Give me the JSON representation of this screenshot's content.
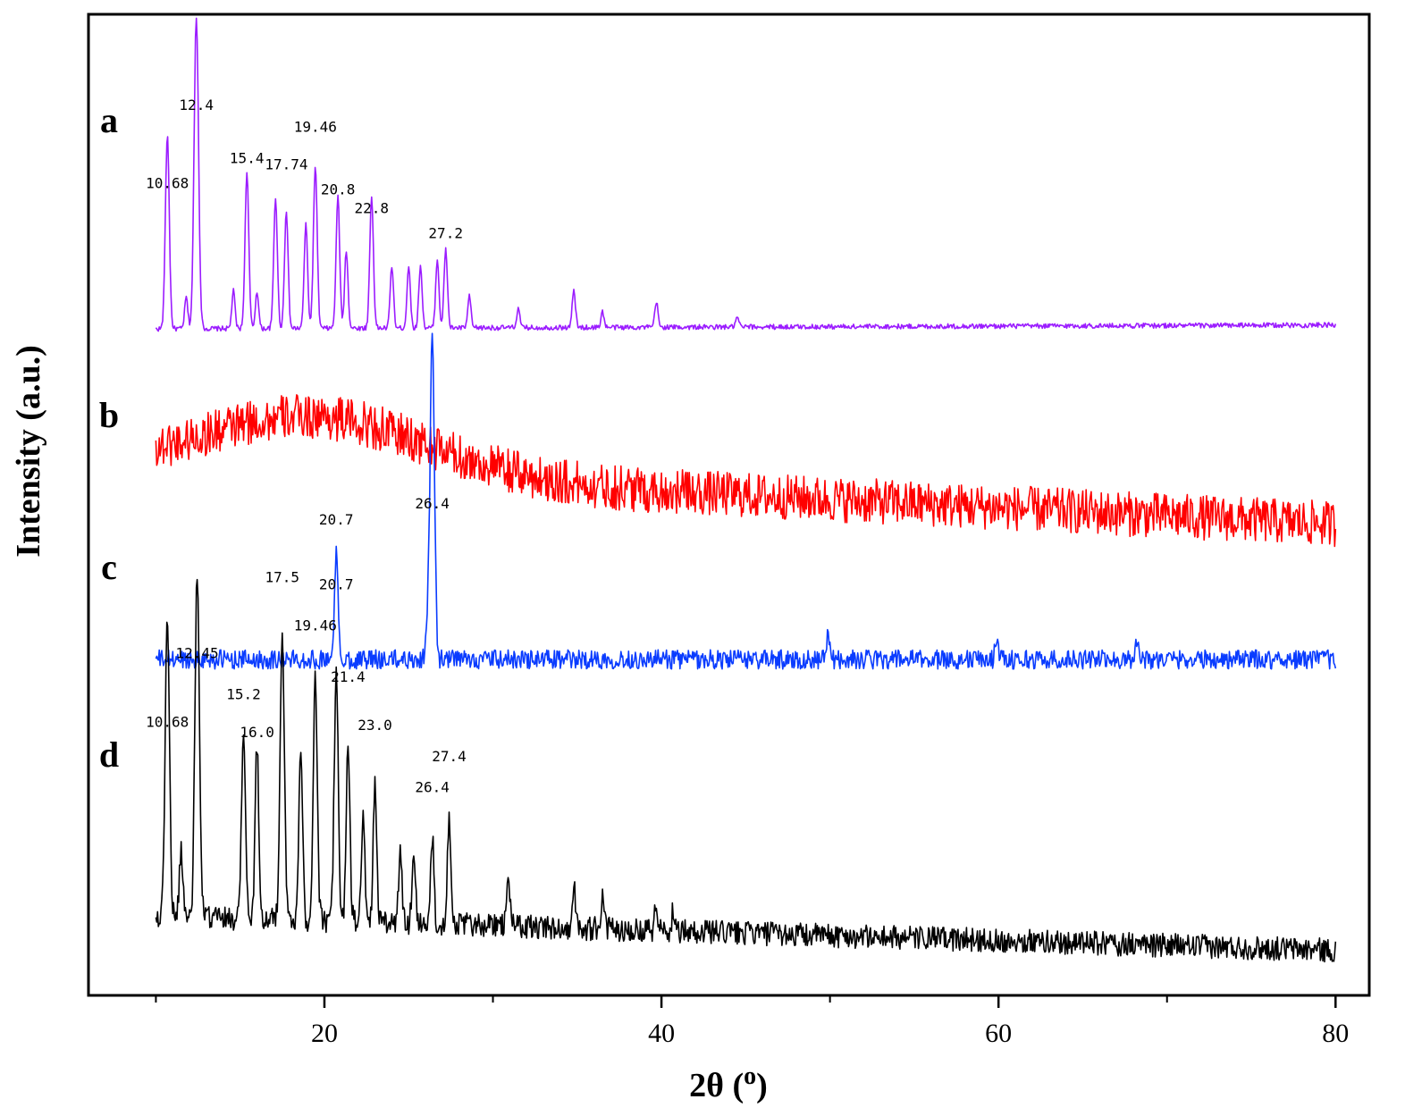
{
  "chart_data": {
    "type": "line",
    "title": "",
    "xlabel": "2θ  (",
    "xlabel_sup": "o",
    "xlabel_close": ")",
    "ylabel": "Intensity (a.u.)",
    "xlim": [
      6,
      82
    ],
    "xticks_major": [
      20,
      40,
      60,
      80
    ],
    "xticks_minor": [
      10,
      30,
      50,
      70
    ],
    "tick_labels": [
      "20",
      "40",
      "60",
      "80"
    ],
    "legend": "none",
    "grid": false,
    "series": [
      {
        "name": "a",
        "color": "#9b1cff",
        "baseline_end": 0.012,
        "noise": 0.008,
        "peaks": [
          [
            10.68,
            0.62
          ],
          [
            11.8,
            0.1
          ],
          [
            12.4,
            1.0
          ],
          [
            14.6,
            0.12
          ],
          [
            15.4,
            0.5
          ],
          [
            16.0,
            0.12
          ],
          [
            17.1,
            0.42
          ],
          [
            17.74,
            0.38
          ],
          [
            18.9,
            0.33
          ],
          [
            19.46,
            0.52
          ],
          [
            20.8,
            0.42
          ],
          [
            21.3,
            0.25
          ],
          [
            22.8,
            0.42
          ],
          [
            24.0,
            0.2
          ],
          [
            25.0,
            0.2
          ],
          [
            25.7,
            0.2
          ],
          [
            26.7,
            0.22
          ],
          [
            27.2,
            0.25
          ],
          [
            28.6,
            0.1
          ],
          [
            31.5,
            0.06
          ],
          [
            34.8,
            0.12
          ],
          [
            36.5,
            0.05
          ],
          [
            39.7,
            0.08
          ],
          [
            44.5,
            0.03
          ]
        ],
        "labels": [
          {
            "text": "10.68",
            "x": 10.68,
            "y": 0.45
          },
          {
            "text": "12.4",
            "x": 12.4,
            "y": 0.7
          },
          {
            "text": "15.4",
            "x": 15.4,
            "y": 0.53
          },
          {
            "text": "17.74",
            "x": 17.74,
            "y": 0.51
          },
          {
            "text": "19.46",
            "x": 19.46,
            "y": 0.63
          },
          {
            "text": "20.8",
            "x": 20.8,
            "y": 0.43
          },
          {
            "text": "22.8",
            "x": 22.8,
            "y": 0.37
          },
          {
            "text": "27.2",
            "x": 27.2,
            "y": 0.29
          }
        ]
      },
      {
        "name": "b",
        "color": "#ff0000",
        "baseline_end": -0.28,
        "noise": 0.11,
        "hump": [
          19.5,
          6.5,
          0.28
        ],
        "peaks": [],
        "labels": []
      },
      {
        "name": "c",
        "color": "#0a3cff",
        "baseline_end": 0.0,
        "noise": 0.03,
        "peaks": [
          [
            20.7,
            0.33
          ],
          [
            26.4,
            1.0
          ],
          [
            26.1,
            0.1
          ],
          [
            49.9,
            0.08
          ],
          [
            59.9,
            0.08
          ],
          [
            68.2,
            0.07
          ]
        ],
        "labels": [
          {
            "text": "20.7",
            "x": 20.7,
            "y": 0.42
          },
          {
            "text": "26.4",
            "x": 26.4,
            "y": 0.47
          }
        ]
      },
      {
        "name": "d",
        "color": "#000000",
        "baseline_end": -0.1,
        "noise": 0.035,
        "peaks": [
          [
            10.68,
            0.88
          ],
          [
            11.5,
            0.2
          ],
          [
            12.45,
            1.0
          ],
          [
            15.2,
            0.55
          ],
          [
            16.0,
            0.5
          ],
          [
            17.5,
            0.85
          ],
          [
            18.6,
            0.5
          ],
          [
            19.46,
            0.7
          ],
          [
            20.7,
            0.72
          ],
          [
            21.4,
            0.5
          ],
          [
            22.3,
            0.3
          ],
          [
            23.0,
            0.4
          ],
          [
            24.5,
            0.2
          ],
          [
            25.3,
            0.22
          ],
          [
            26.4,
            0.25
          ],
          [
            27.4,
            0.32
          ],
          [
            30.9,
            0.15
          ],
          [
            34.8,
            0.12
          ],
          [
            36.5,
            0.1
          ],
          [
            39.7,
            0.08
          ],
          [
            40.7,
            0.06
          ]
        ],
        "labels": [
          {
            "text": "10.68",
            "x": 10.68,
            "y": 0.55
          },
          {
            "text": "12.45",
            "x": 12.45,
            "y": 0.75
          },
          {
            "text": "15.2",
            "x": 15.2,
            "y": 0.63
          },
          {
            "text": "16.0",
            "x": 16.0,
            "y": 0.52
          },
          {
            "text": "17.5",
            "x": 17.5,
            "y": 0.97
          },
          {
            "text": "19.46",
            "x": 19.46,
            "y": 0.83
          },
          {
            "text": "20.7",
            "x": 20.7,
            "y": 0.95
          },
          {
            "text": "21.4",
            "x": 21.4,
            "y": 0.68
          },
          {
            "text": "23.0",
            "x": 23.0,
            "y": 0.54
          },
          {
            "text": "26.4",
            "x": 26.4,
            "y": 0.36
          },
          {
            "text": "27.4",
            "x": 27.4,
            "y": 0.45
          }
        ]
      }
    ]
  }
}
